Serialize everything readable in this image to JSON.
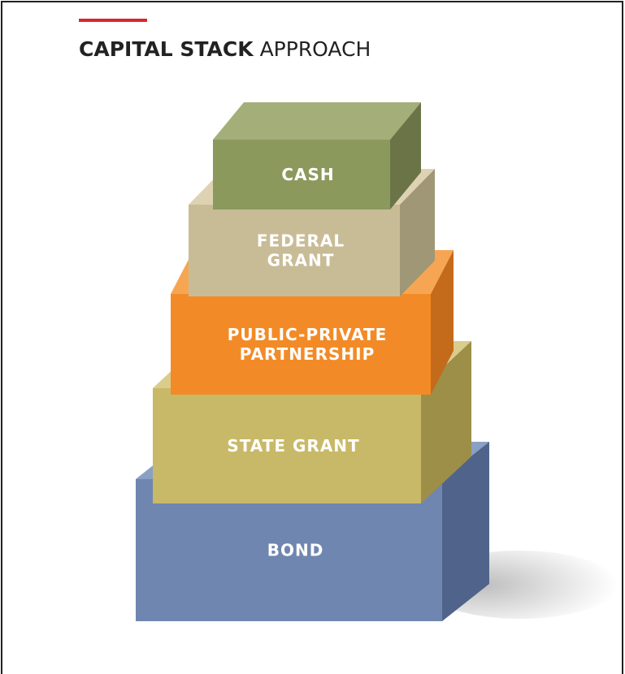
{
  "title": {
    "bold": "CAPITAL STACK",
    "regular": "APPROACH"
  },
  "layers": [
    {
      "lines": [
        "CASH"
      ]
    },
    {
      "lines": [
        "FEDERAL",
        "GRANT"
      ]
    },
    {
      "lines": [
        "PUBLIC-PRIVATE",
        "PARTNERSHIP"
      ]
    },
    {
      "lines": [
        "STATE GRANT"
      ]
    },
    {
      "lines": [
        "BOND"
      ]
    }
  ]
}
